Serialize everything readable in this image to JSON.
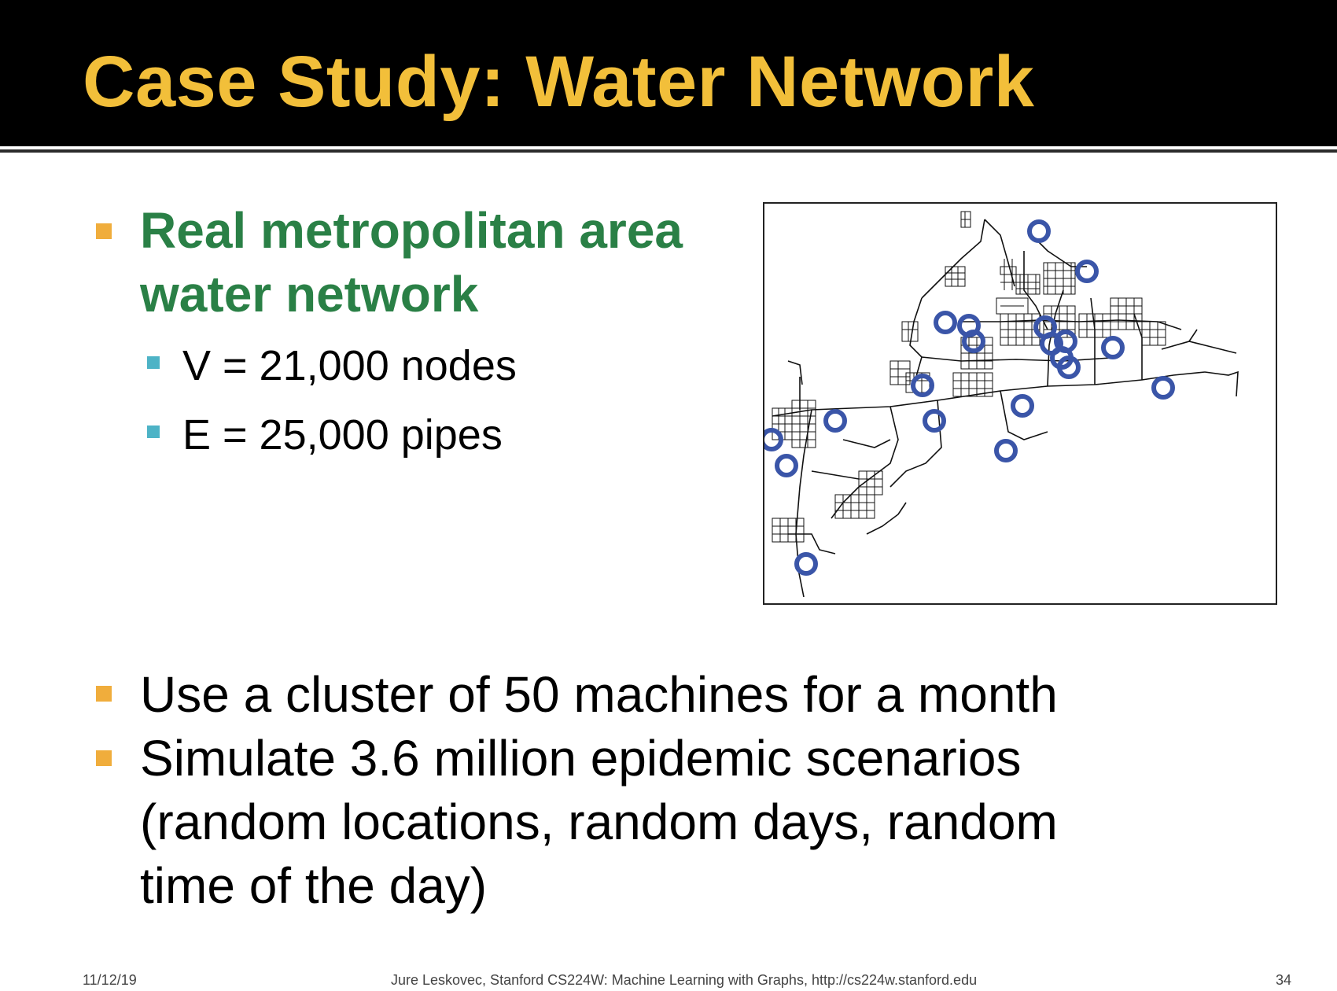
{
  "slide": {
    "title": "Case Study: Water Network",
    "bullets": {
      "b1_line1": "Real metropolitan area",
      "b1_line2": "water network",
      "sub1": "V = 21,000 nodes",
      "sub2": "E = 25,000 pipes",
      "b2": "Use a cluster of 50 machines for a month",
      "b3_line1": "Simulate 3.6 million epidemic scenarios",
      "b3_line2": "(random locations, random days, random",
      "b3_line3": "time of the day)"
    },
    "footer": {
      "date": "11/12/19",
      "credit": "Jure Leskovec, Stanford CS224W: Machine Learning with Graphs, http://cs224w.stanford.edu",
      "page": "34"
    }
  },
  "colors": {
    "title": "#f2bf3a",
    "green_text": "#2a8046",
    "bullet": "#f0ad3c",
    "subbullet": "#4db3c6",
    "sensor_circle": "#3a55a8"
  }
}
